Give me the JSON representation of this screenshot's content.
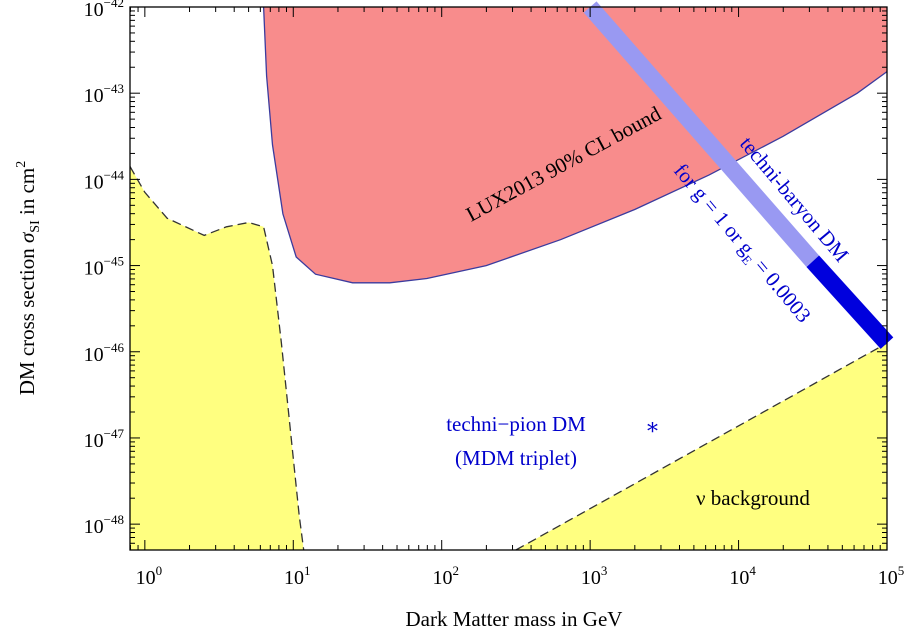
{
  "chart_data": {
    "type": "area",
    "xlabel": "Dark Matter mass in GeV",
    "ylabel": {
      "main": "DM cross section ",
      "sym": "σ",
      "sub": "SI",
      "tail": " in cm",
      "sup": "2"
    },
    "x_scale": "log",
    "y_scale": "log",
    "xlim_log10": [
      -0.1,
      5.0
    ],
    "ylim_log10": [
      -48.3,
      -42.0
    ],
    "x_ticks": [
      {
        "base": "10",
        "exp": "0",
        "log10": 0
      },
      {
        "base": "10",
        "exp": "1",
        "log10": 1
      },
      {
        "base": "10",
        "exp": "2",
        "log10": 2
      },
      {
        "base": "10",
        "exp": "3",
        "log10": 3
      },
      {
        "base": "10",
        "exp": "4",
        "log10": 4
      },
      {
        "base": "10",
        "exp": "5",
        "log10": 5
      }
    ],
    "y_ticks": [
      {
        "base": "10",
        "exp": "−42",
        "log10": -42
      },
      {
        "base": "10",
        "exp": "−43",
        "log10": -43
      },
      {
        "base": "10",
        "exp": "−44",
        "log10": -44
      },
      {
        "base": "10",
        "exp": "−45",
        "log10": -45
      },
      {
        "base": "10",
        "exp": "−46",
        "log10": -46
      },
      {
        "base": "10",
        "exp": "−47",
        "log10": -47
      },
      {
        "base": "10",
        "exp": "−48",
        "log10": -48
      }
    ],
    "grid": false,
    "colors": {
      "lux_fill": "#f88c8c",
      "lux_edge": "#3b3b9e",
      "nu_fill": "#ffff80",
      "band_light": "#9999f2",
      "band_dark": "#0000dd",
      "blue_text": "#0000cc"
    },
    "regions": {
      "lux_bound": {
        "label": "LUX2013 90% CL bound",
        "points": [
          [
            0.8,
            -42.0
          ],
          [
            0.82,
            -42.8
          ],
          [
            0.86,
            -43.6
          ],
          [
            0.93,
            -44.4
          ],
          [
            1.02,
            -44.9
          ],
          [
            1.15,
            -45.1
          ],
          [
            1.4,
            -45.2
          ],
          [
            1.65,
            -45.2
          ],
          [
            1.9,
            -45.15
          ],
          [
            2.3,
            -45.0
          ],
          [
            2.8,
            -44.7
          ],
          [
            3.3,
            -44.35
          ],
          [
            3.8,
            -43.95
          ],
          [
            4.3,
            -43.5
          ],
          [
            4.8,
            -43.0
          ],
          [
            5.0,
            -42.75
          ],
          [
            5.0,
            -42.0
          ]
        ]
      },
      "nu_background_low": {
        "points": [
          [
            -0.1,
            -43.85
          ],
          [
            0.0,
            -44.15
          ],
          [
            0.15,
            -44.45
          ],
          [
            0.4,
            -44.65
          ],
          [
            0.55,
            -44.55
          ],
          [
            0.7,
            -44.5
          ],
          [
            0.8,
            -44.55
          ],
          [
            0.86,
            -45.0
          ],
          [
            0.92,
            -45.9
          ],
          [
            0.98,
            -46.9
          ],
          [
            1.04,
            -47.9
          ],
          [
            1.07,
            -48.3
          ],
          [
            -0.1,
            -48.3
          ]
        ]
      },
      "nu_background_high": {
        "label": "ν background",
        "points": [
          [
            2.5,
            -48.3
          ],
          [
            5.0,
            -45.9
          ],
          [
            5.0,
            -48.3
          ]
        ]
      }
    },
    "series": [
      {
        "name": "techni-baryon DM",
        "label_line2": "for g = 1 or g",
        "label_sub": "E",
        "label_tail": " = 0.0003",
        "x": [
          3.0,
          4.5,
          5.0
        ],
        "y": [
          -42.0,
          -44.95,
          -45.9
        ],
        "segments": [
          {
            "x_from": 3.0,
            "x_to": 4.5,
            "shade": "light"
          },
          {
            "x_from": 4.5,
            "x_to": 5.0,
            "shade": "dark"
          }
        ]
      },
      {
        "name": "techni−pion DM",
        "name_line2": "(MDM triplet)",
        "marker": "*",
        "x": [
          3.42
        ],
        "y": [
          -46.85
        ]
      }
    ]
  }
}
